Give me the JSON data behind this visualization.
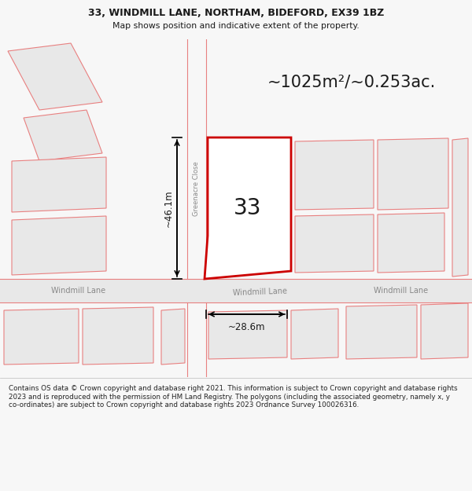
{
  "title_line1": "33, WINDMILL LANE, NORTHAM, BIDEFORD, EX39 1BZ",
  "title_line2": "Map shows position and indicative extent of the property.",
  "area_text": "~1025m²/~0.253ac.",
  "label_33": "33",
  "dim_vertical": "~46.1m",
  "dim_horizontal": "~28.6m",
  "road_label_left": "Windmill Lane",
  "road_label_center": "Windmill Lane",
  "road_label_right": "Windmill Lane",
  "road_label_vert": "Greenacre Close",
  "footer": "Contains OS data © Crown copyright and database right 2021. This information is subject to Crown copyright and database rights 2023 and is reproduced with the permission of HM Land Registry. The polygons (including the associated geometry, namely x, y co-ordinates) are subject to Crown copyright and database rights 2023 Ordnance Survey 100026316.",
  "bg_color": "#f7f7f7",
  "map_bg": "#ffffff",
  "road_fill": "#e8e8e8",
  "building_fill": "#e8e8e8",
  "plot_line_color": "#cc0000",
  "line_color": "#e88080",
  "text_color": "#1a1a1a",
  "road_text_color": "#888888",
  "footer_color": "#222222"
}
